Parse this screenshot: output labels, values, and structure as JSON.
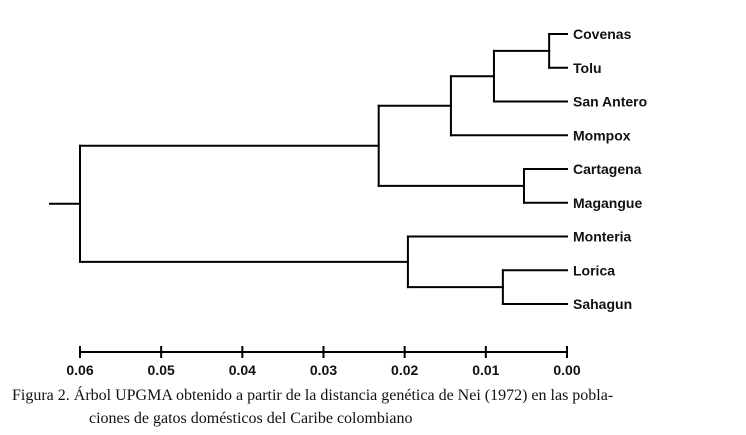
{
  "chart_data": {
    "type": "dendrogram",
    "method": "UPGMA",
    "axis": {
      "ticks": [
        "0.06",
        "0.05",
        "0.04",
        "0.03",
        "0.02",
        "0.01",
        "0.00"
      ],
      "range": [
        0.06,
        0.0
      ]
    },
    "leaves": [
      "Covenas",
      "Tolu",
      "San Antero",
      "Mompox",
      "Cartagena",
      "Magangue",
      "Monteria",
      "Lorica",
      "Sahagun"
    ],
    "tree": {
      "height": 0.06,
      "children": [
        {
          "height": 0.0232,
          "children": [
            {
              "height": 0.0143,
              "children": [
                {
                  "height": 0.009,
                  "children": [
                    {
                      "height": 0.0022,
                      "children": [
                        {
                          "leaf": 0
                        },
                        {
                          "leaf": 1
                        }
                      ]
                    },
                    {
                      "leaf": 2
                    }
                  ]
                },
                {
                  "leaf": 3
                }
              ]
            },
            {
              "height": 0.0053,
              "children": [
                {
                  "leaf": 4
                },
                {
                  "leaf": 5
                }
              ]
            }
          ]
        },
        {
          "height": 0.0196,
          "children": [
            {
              "leaf": 6
            },
            {
              "height": 0.0079,
              "children": [
                {
                  "leaf": 7
                },
                {
                  "leaf": 8
                }
              ]
            }
          ]
        }
      ]
    }
  },
  "caption": {
    "line1": "Figura 2.  Árbol UPGMA obtenido a partir de la distancia genética de Nei (1972) en las pobla-",
    "line2": "ciones de gatos domésticos del Caribe colombiano"
  }
}
